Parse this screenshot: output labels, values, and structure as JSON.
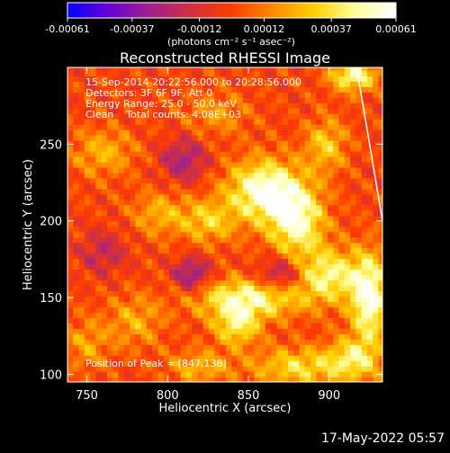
{
  "colorbar": {
    "tick_labels": [
      "-0.00061",
      "-0.00037",
      "-0.00012",
      "0.00012",
      "0.00037",
      "0.00061"
    ],
    "tick_values": [
      -0.00061,
      -0.00037,
      -0.00012,
      0.00012,
      0.00037,
      0.00061
    ],
    "range": [
      -0.00061,
      0.00061
    ],
    "unit_label": "(photons cm⁻² s⁻¹ asec⁻²)",
    "palette": [
      "#0000ff",
      "#6a00d8",
      "#a0208c",
      "#d03040",
      "#ff3c00",
      "#ff8a00",
      "#ffd000",
      "#ffff9a",
      "#ffffff"
    ]
  },
  "annotations": {
    "line1": "15-Sep-2014 20:22:56.000 to 20:28:56.000",
    "line2": "Detectors: 3F 6F 9F, Att 0",
    "line3": "Energy Range: 25.0 - 50.0 keV",
    "line4": "Clean    Total counts: 4.08E+03",
    "peak": "Position of Peak = [847,138]"
  },
  "footer": {
    "timestamp": "17-May-2022 05:57"
  },
  "chart_data": {
    "type": "heatmap",
    "title": "Reconstructed RHESSI Image",
    "xlabel": "Heliocentric X (arcsec)",
    "ylabel": "Heliocentric Y (arcsec)",
    "xlim": [
      738,
      933
    ],
    "ylim": [
      95,
      300
    ],
    "xticks": [
      750,
      800,
      850,
      900
    ],
    "yticks": [
      100,
      150,
      200,
      250
    ],
    "value_range": [
      -0.00061,
      0.00061
    ],
    "peak_position": [
      847,
      138
    ],
    "limb_line": [
      [
        917,
        300
      ],
      [
        933,
        200
      ]
    ],
    "sources": [
      {
        "x": 860,
        "y": 220,
        "sx": 16,
        "sy": 14,
        "amp": 0.00058
      },
      {
        "x": 880,
        "y": 200,
        "sx": 12,
        "sy": 16,
        "amp": 0.0005
      },
      {
        "x": 915,
        "y": 295,
        "sx": 10,
        "sy": 7,
        "amp": 0.0005
      },
      {
        "x": 898,
        "y": 250,
        "sx": 9,
        "sy": 12,
        "amp": 0.0003
      },
      {
        "x": 925,
        "y": 150,
        "sx": 8,
        "sy": 20,
        "amp": 0.00058
      },
      {
        "x": 900,
        "y": 165,
        "sx": 14,
        "sy": 12,
        "amp": 0.00044
      },
      {
        "x": 850,
        "y": 150,
        "sx": 24,
        "sy": 9,
        "amp": 0.00048
      },
      {
        "x": 843,
        "y": 132,
        "sx": 10,
        "sy": 9,
        "amp": 0.0004
      },
      {
        "x": 825,
        "y": 200,
        "sx": 12,
        "sy": 10,
        "amp": 0.0003
      },
      {
        "x": 795,
        "y": 205,
        "sx": 12,
        "sy": 10,
        "amp": 0.00024
      },
      {
        "x": 760,
        "y": 245,
        "sx": 14,
        "sy": 11,
        "amp": 0.00024
      },
      {
        "x": 780,
        "y": 135,
        "sx": 12,
        "sy": 12,
        "amp": 0.00022
      },
      {
        "x": 880,
        "y": 105,
        "sx": 20,
        "sy": 9,
        "amp": 0.00034
      },
      {
        "x": 915,
        "y": 110,
        "sx": 12,
        "sy": 10,
        "amp": 0.00036
      },
      {
        "x": 820,
        "y": 105,
        "sx": 14,
        "sy": 8,
        "amp": 0.00024
      },
      {
        "x": 750,
        "y": 120,
        "sx": 10,
        "sy": 12,
        "amp": 0.0002
      },
      {
        "x": 830,
        "y": 270,
        "sx": 14,
        "sy": 10,
        "amp": 0.00018
      },
      {
        "x": 815,
        "y": 165,
        "sx": 8,
        "sy": 8,
        "amp": -0.00035
      },
      {
        "x": 870,
        "y": 165,
        "sx": 10,
        "sy": 8,
        "amp": -0.00032
      },
      {
        "x": 810,
        "y": 240,
        "sx": 10,
        "sy": 10,
        "amp": -0.00028
      },
      {
        "x": 760,
        "y": 180,
        "sx": 10,
        "sy": 10,
        "amp": -0.0002
      }
    ]
  }
}
